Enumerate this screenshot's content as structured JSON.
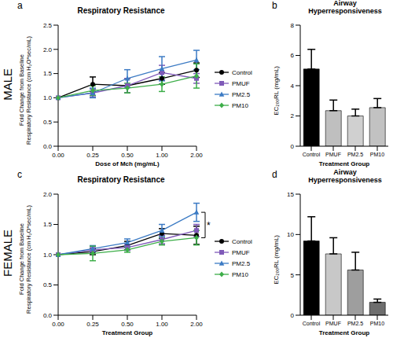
{
  "row_labels": [
    "MALE",
    "FEMALE"
  ],
  "chart_data": [
    {
      "type": "line",
      "panel": "a",
      "title": "Respiratory Resistance",
      "xlabel": "Dose of Mch (mg/mL)",
      "ylabel": [
        "Fold Change from Baseline",
        "Respiratory Resistance (cm H₂O*sec/mL)"
      ],
      "categories": [
        "0.00",
        "0.25",
        "0.50",
        "1.00",
        "2.00"
      ],
      "ylim": [
        0,
        2.5
      ],
      "yticks": [
        {
          "value": 0,
          "label": "0.0"
        },
        {
          "value": 0.5,
          "label": "0.5"
        },
        {
          "value": 1,
          "label": "1.0"
        },
        {
          "value": 1.5,
          "label": "1.5"
        },
        {
          "value": 2,
          "label": "2.0"
        },
        {
          "value": 2.5,
          "label": "2.5"
        }
      ],
      "legend": "right",
      "series": [
        {
          "name": "Control",
          "color": "#000000",
          "marker": "circle",
          "values": [
            1.0,
            1.28,
            1.25,
            1.4,
            1.57
          ],
          "errors": [
            0,
            0.15,
            0.15,
            0.12,
            0.15
          ]
        },
        {
          "name": "PMUF",
          "color": "#7f5ab8",
          "marker": "square",
          "values": [
            1.0,
            1.1,
            1.25,
            1.52,
            1.4
          ],
          "errors": [
            0,
            0.08,
            0.15,
            0.15,
            0.1
          ]
        },
        {
          "name": "PM2.5",
          "color": "#3c7bc4",
          "marker": "triangle",
          "values": [
            1.0,
            1.1,
            1.4,
            1.6,
            1.78
          ],
          "errors": [
            0,
            0.1,
            0.18,
            0.25,
            0.2
          ]
        },
        {
          "name": "PM10",
          "color": "#3dae49",
          "marker": "diamond",
          "values": [
            1.0,
            1.15,
            1.2,
            1.28,
            1.45
          ],
          "errors": [
            0,
            0.1,
            0.1,
            0.15,
            0.25
          ]
        }
      ]
    },
    {
      "type": "bar",
      "panel": "b",
      "title": "Airway Hyperresponsiveness",
      "xlabel": "Treatment Group",
      "ylabel": "EC₂₀₀RL (mg/mL)",
      "categories": [
        "Control",
        "PMUF",
        "PM2.5",
        "PM10"
      ],
      "values": [
        5.1,
        2.35,
        2.0,
        2.55
      ],
      "errors": [
        1.3,
        0.7,
        0.45,
        0.6
      ],
      "colors": [
        "#000000",
        "#bfbfbf",
        "#d0d0d0",
        "#c2c2c2"
      ],
      "ylim": [
        0,
        8
      ],
      "yticks": [
        0,
        2,
        4,
        6,
        8
      ]
    },
    {
      "type": "line",
      "panel": "c",
      "title": "Respiratory Resistance",
      "xlabel": "Treatment Group",
      "ylabel": [
        "Fold Change from Baseline",
        "Respiratory Resistance (cm H₂O*sec/mL)"
      ],
      "categories": [
        "0.00",
        "0.25",
        "0.50",
        "1.00",
        "2.00"
      ],
      "ylim": [
        0,
        2
      ],
      "yticks": [
        {
          "value": 0,
          "label": "0.0"
        },
        {
          "value": 0.5,
          "label": "0.5"
        },
        {
          "value": 1,
          "label": "1.0"
        },
        {
          "value": 1.5,
          "label": "1.5"
        },
        {
          "value": 2,
          "label": "2.0"
        }
      ],
      "legend": "right",
      "annotations": [
        {
          "text": "*",
          "x": "2.00",
          "between": [
            "PM2.5",
            "PM10"
          ]
        }
      ],
      "series": [
        {
          "name": "Control",
          "color": "#000000",
          "marker": "circle",
          "values": [
            1.0,
            1.05,
            1.15,
            1.35,
            1.32
          ],
          "errors": [
            0,
            0.05,
            0.07,
            0.08,
            0.15
          ]
        },
        {
          "name": "PMUF",
          "color": "#7f5ab8",
          "marker": "square",
          "values": [
            1.0,
            1.08,
            1.12,
            1.25,
            1.4
          ],
          "errors": [
            0,
            0.05,
            0.05,
            0.07,
            0.1
          ]
        },
        {
          "name": "PM2.5",
          "color": "#3c7bc4",
          "marker": "triangle",
          "values": [
            1.0,
            1.1,
            1.2,
            1.4,
            1.7
          ],
          "errors": [
            0,
            0.05,
            0.06,
            0.1,
            0.15
          ]
        },
        {
          "name": "PM10",
          "color": "#3dae49",
          "marker": "diamond",
          "values": [
            1.0,
            1.02,
            1.08,
            1.22,
            1.28
          ],
          "errors": [
            0,
            0.12,
            0.04,
            0.06,
            0.12
          ]
        }
      ]
    },
    {
      "type": "bar",
      "panel": "d",
      "title": "Airway Hyperresponsiveness",
      "xlabel": "Treatment Group",
      "ylabel": "EC₂₀₀RL (mg/mL)",
      "categories": [
        "Control",
        "PMUF",
        "PM2.5",
        "PM10"
      ],
      "values": [
        9.2,
        7.6,
        5.6,
        1.6
      ],
      "errors": [
        3.0,
        2.0,
        2.2,
        0.4
      ],
      "colors": [
        "#000000",
        "#c8c8c8",
        "#9e9e9e",
        "#6e6e6e"
      ],
      "ylim": [
        0,
        15
      ],
      "yticks": [
        0,
        5,
        10,
        15
      ]
    }
  ]
}
